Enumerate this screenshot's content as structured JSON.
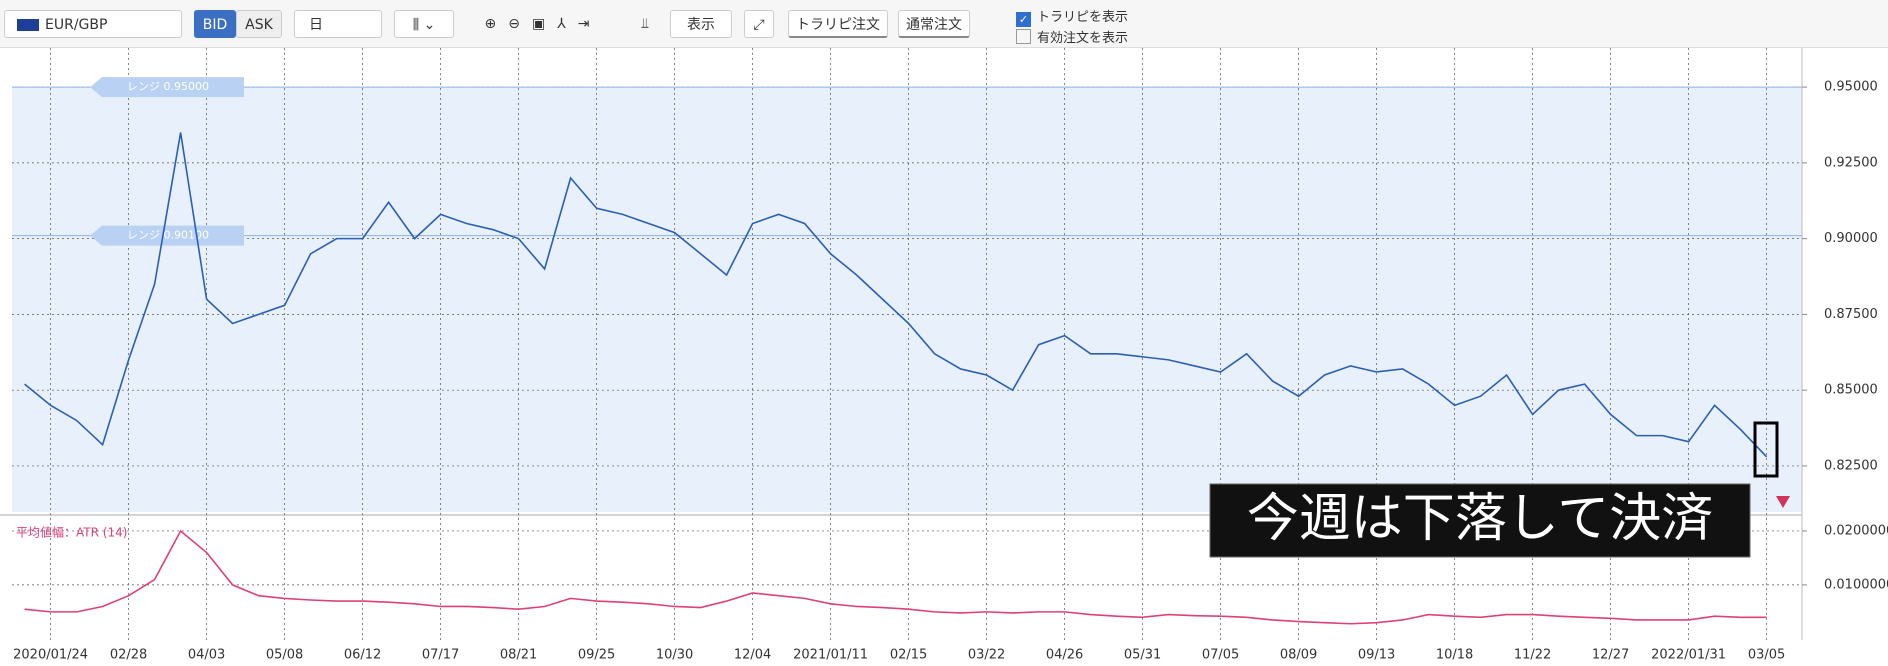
{
  "toolbar": {
    "symbol": "EUR/GBP",
    "bid": "BID",
    "ask": "ASK",
    "timeframe": "日",
    "display": "表示",
    "trarepi_order": "トラリピ注文",
    "normal_order": "通常注文",
    "show_trarepi": "トラリピを表示",
    "show_orders": "有効注文を表示"
  },
  "caption": "今週は下落して決済",
  "chart_data": [
    {
      "type": "line",
      "color": "#2b5fb4",
      "grid": true,
      "categories": [
        null,
        "2020/01/24",
        null,
        null,
        "02/28",
        null,
        null,
        "04/03",
        null,
        null,
        "05/08",
        null,
        null,
        "06/12",
        null,
        null,
        "07/17",
        null,
        null,
        "08/21",
        null,
        null,
        "09/25",
        null,
        null,
        "10/30",
        null,
        null,
        "12/04",
        null,
        null,
        "2021/01/11",
        null,
        null,
        "02/15",
        null,
        null,
        "03/22",
        null,
        null,
        "04/26",
        null,
        null,
        "05/31",
        null,
        null,
        "07/05",
        null,
        null,
        "08/09",
        null,
        null,
        "09/13",
        null,
        null,
        "10/18",
        null,
        null,
        "11/22",
        null,
        null,
        "12/27",
        null,
        null,
        "2022/01/31",
        null,
        null,
        "03/05"
      ],
      "values": [
        0.852,
        0.845,
        0.84,
        0.832,
        0.86,
        0.885,
        0.935,
        0.88,
        0.872,
        0.875,
        0.878,
        0.895,
        0.9,
        0.9,
        0.912,
        0.9,
        0.908,
        0.905,
        0.903,
        0.9,
        0.89,
        0.92,
        0.91,
        0.908,
        0.905,
        0.902,
        0.895,
        0.888,
        0.905,
        0.908,
        0.905,
        0.895,
        0.888,
        0.88,
        0.872,
        0.862,
        0.857,
        0.855,
        0.85,
        0.865,
        0.868,
        0.862,
        0.862,
        0.861,
        0.86,
        0.858,
        0.856,
        0.862,
        0.853,
        0.848,
        0.855,
        0.858,
        0.856,
        0.857,
        0.852,
        0.845,
        0.848,
        0.855,
        0.842,
        0.85,
        0.852,
        0.842,
        0.835,
        0.835,
        0.833,
        0.845,
        0.837,
        0.828
      ],
      "ylim": [
        0.8098,
        0.9629
      ],
      "yticks": [
        {
          "value": 0.825,
          "label": "0.82500"
        },
        {
          "value": 0.85,
          "label": "0.85000"
        },
        {
          "value": 0.875,
          "label": "0.87500"
        },
        {
          "value": 0.9,
          "label": "0.90000"
        },
        {
          "value": 0.925,
          "label": "0.92500"
        },
        {
          "value": 0.95,
          "label": "0.95000"
        }
      ],
      "ranges": [
        {
          "value": 0.95,
          "label": "レンジ 0.95000"
        },
        {
          "value": 0.901,
          "label": "レンジ 0.90100"
        }
      ]
    },
    {
      "type": "line",
      "title": "平均値幅：ATR (14)",
      "color": "#e0407a",
      "grid": true,
      "values": [
        0.0055,
        0.005,
        0.005,
        0.006,
        0.008,
        0.011,
        0.02,
        0.016,
        0.01,
        0.008,
        0.0075,
        0.0072,
        0.007,
        0.007,
        0.0068,
        0.0065,
        0.006,
        0.006,
        0.0058,
        0.0055,
        0.006,
        0.0075,
        0.007,
        0.0068,
        0.0065,
        0.006,
        0.0058,
        0.007,
        0.0085,
        0.008,
        0.0075,
        0.0065,
        0.006,
        0.0058,
        0.0055,
        0.005,
        0.0048,
        0.005,
        0.0048,
        0.005,
        0.005,
        0.0045,
        0.0042,
        0.004,
        0.0045,
        0.0043,
        0.0042,
        0.004,
        0.0035,
        0.0032,
        0.003,
        0.0028,
        0.003,
        0.0035,
        0.0045,
        0.0042,
        0.004,
        0.0045,
        0.0045,
        0.0042,
        0.004,
        0.0038,
        0.0035,
        0.0035,
        0.0035,
        0.0042,
        0.004,
        0.004
      ],
      "ylim": [
        0.0009,
        0.0224
      ],
      "yticks": [
        {
          "value": 0.01,
          "label": "0.0100000"
        },
        {
          "value": 0.02,
          "label": "0.0200000"
        }
      ]
    }
  ]
}
